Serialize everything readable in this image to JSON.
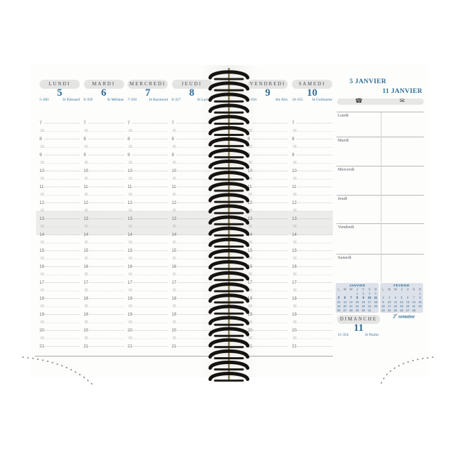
{
  "colors": {
    "accent_blue": "#2e6c95",
    "label_bar_bg": "#e4e4e3",
    "lunch_band": "#ececea",
    "calendar_bg": "#dce1ea",
    "spiral_black": "#161310",
    "spiral_wire": "#847748"
  },
  "left_page": {
    "days": [
      {
        "name": "LUNDI",
        "number": "5",
        "code": "5-360",
        "saint": "St Édouard"
      },
      {
        "name": "MARDI",
        "number": "6",
        "code": "6-359",
        "saint": "St Mélaine"
      },
      {
        "name": "MERCREDI",
        "number": "7",
        "code": "7-358",
        "saint": "St Raymond"
      },
      {
        "name": "JEUDI",
        "number": "8",
        "code": "8-357",
        "saint": "St Lucien"
      },
      {
        "name": "VENDREDI",
        "number": "9",
        "code": "9-356",
        "saint": "Ste Alix"
      },
      {
        "name": "SAMEDI",
        "number": "10",
        "code": "10-355",
        "saint": "St Guillaume"
      }
    ],
    "hours": [
      "7",
      "8",
      "9",
      "10",
      "11",
      "12",
      "13",
      "14",
      "15",
      "16",
      "17",
      "18",
      "19",
      "20",
      "21"
    ],
    "half_hour_label": "30"
  },
  "right_page": {
    "date_start": "5 JANVIER",
    "date_end": "11 JANVIER",
    "phone_icon": "☎",
    "envelope_icon": "✉",
    "day_sections": [
      "Lundi",
      "Mardi",
      "Mercredi",
      "Jeudi",
      "Vendredi",
      "Samedi"
    ],
    "week_number": "2",
    "week_sup": "e",
    "week_word": "semaine",
    "sunday": {
      "name": "DIMANCHE",
      "number": "11",
      "code": "11-354",
      "saint": "St Paulin"
    },
    "mini_calendars": [
      {
        "month": "JANVIER",
        "day_letters": [
          "L",
          "M",
          "M",
          "J",
          "V",
          "S",
          "D"
        ],
        "weeks": [
          [
            "",
            "",
            "",
            "1",
            "2",
            "3",
            "4"
          ],
          [
            "5",
            "6",
            "7",
            "8",
            "9",
            "10",
            "11"
          ],
          [
            "12",
            "13",
            "14",
            "15",
            "16",
            "17",
            "18"
          ],
          [
            "19",
            "20",
            "21",
            "22",
            "23",
            "24",
            "25"
          ],
          [
            "26",
            "27",
            "28",
            "29",
            "30",
            "31",
            ""
          ]
        ],
        "highlight_week": 1
      },
      {
        "month": "FÉVRIER",
        "day_letters": [
          "L",
          "M",
          "M",
          "J",
          "V",
          "S",
          "D"
        ],
        "weeks": [
          [
            "",
            "",
            "",
            "",
            "",
            "",
            "1"
          ],
          [
            "2",
            "3",
            "4",
            "5",
            "6",
            "7",
            "8"
          ],
          [
            "9",
            "10",
            "11",
            "12",
            "13",
            "14",
            "15"
          ],
          [
            "16",
            "17",
            "18",
            "19",
            "20",
            "21",
            "22"
          ],
          [
            "23",
            "24",
            "25",
            "26",
            "27",
            "28",
            ""
          ]
        ],
        "highlight_week": -1
      }
    ]
  }
}
